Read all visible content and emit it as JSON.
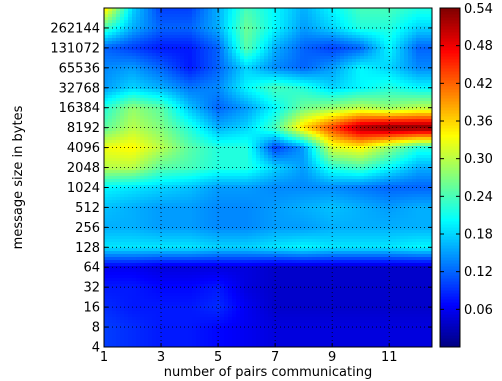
{
  "chart_data": {
    "type": "heatmap",
    "title": "",
    "xlabel": "number of pairs communicating",
    "ylabel": "message size in bytes",
    "x_ticks": [
      1,
      3,
      5,
      7,
      9,
      11
    ],
    "x_range": [
      1,
      12.5
    ],
    "y_ticks": [
      4,
      8,
      16,
      32,
      64,
      128,
      256,
      512,
      1024,
      2048,
      4096,
      8192,
      16384,
      32768,
      65536,
      131072,
      262144
    ],
    "y_scale": "log2",
    "y_range": [
      4,
      524288
    ],
    "colorbar": {
      "ticks": [
        0.06,
        0.12,
        0.18,
        0.24,
        0.3,
        0.36,
        0.42,
        0.48,
        0.54
      ],
      "range": [
        0.0,
        0.54
      ],
      "colormap": "jet"
    },
    "grid": true,
    "x": [
      1,
      2,
      3,
      4,
      5,
      6,
      7,
      8,
      9,
      10,
      11,
      12
    ],
    "y": [
      4,
      8,
      16,
      32,
      64,
      128,
      256,
      512,
      1024,
      2048,
      4096,
      8192,
      16384,
      32768,
      65536,
      131072,
      262144,
      524288
    ],
    "values": [
      [
        0.1,
        0.09,
        0.08,
        0.08,
        0.07,
        0.06,
        0.05,
        0.05,
        0.05,
        0.05,
        0.05,
        0.05
      ],
      [
        0.1,
        0.09,
        0.08,
        0.08,
        0.07,
        0.06,
        0.05,
        0.05,
        0.05,
        0.05,
        0.05,
        0.05
      ],
      [
        0.09,
        0.08,
        0.08,
        0.08,
        0.09,
        0.06,
        0.04,
        0.04,
        0.04,
        0.04,
        0.04,
        0.04
      ],
      [
        0.08,
        0.08,
        0.07,
        0.07,
        0.08,
        0.05,
        0.04,
        0.04,
        0.04,
        0.04,
        0.04,
        0.04
      ],
      [
        0.06,
        0.06,
        0.05,
        0.05,
        0.05,
        0.05,
        0.04,
        0.04,
        0.04,
        0.04,
        0.04,
        0.04
      ],
      [
        0.19,
        0.19,
        0.19,
        0.19,
        0.18,
        0.18,
        0.19,
        0.2,
        0.19,
        0.19,
        0.19,
        0.2
      ],
      [
        0.16,
        0.16,
        0.15,
        0.15,
        0.14,
        0.14,
        0.15,
        0.15,
        0.16,
        0.16,
        0.16,
        0.16
      ],
      [
        0.17,
        0.16,
        0.15,
        0.15,
        0.14,
        0.14,
        0.15,
        0.16,
        0.17,
        0.16,
        0.15,
        0.16
      ],
      [
        0.2,
        0.19,
        0.18,
        0.17,
        0.15,
        0.15,
        0.14,
        0.14,
        0.14,
        0.13,
        0.12,
        0.12
      ],
      [
        0.3,
        0.3,
        0.25,
        0.24,
        0.22,
        0.22,
        0.18,
        0.15,
        0.22,
        0.24,
        0.2,
        0.16
      ],
      [
        0.33,
        0.34,
        0.3,
        0.25,
        0.22,
        0.22,
        0.1,
        0.15,
        0.32,
        0.34,
        0.28,
        0.22
      ],
      [
        0.25,
        0.3,
        0.27,
        0.22,
        0.16,
        0.18,
        0.24,
        0.36,
        0.44,
        0.52,
        0.54,
        0.54
      ],
      [
        0.22,
        0.28,
        0.25,
        0.17,
        0.12,
        0.15,
        0.2,
        0.26,
        0.28,
        0.3,
        0.28,
        0.3
      ],
      [
        0.15,
        0.18,
        0.16,
        0.13,
        0.14,
        0.2,
        0.24,
        0.22,
        0.18,
        0.2,
        0.22,
        0.2
      ],
      [
        0.14,
        0.15,
        0.12,
        0.08,
        0.12,
        0.18,
        0.14,
        0.12,
        0.15,
        0.2,
        0.18,
        0.14
      ],
      [
        0.12,
        0.1,
        0.08,
        0.08,
        0.12,
        0.25,
        0.16,
        0.12,
        0.1,
        0.12,
        0.2,
        0.12
      ],
      [
        0.24,
        0.16,
        0.12,
        0.12,
        0.16,
        0.26,
        0.2,
        0.15,
        0.18,
        0.22,
        0.22,
        0.18
      ],
      [
        0.36,
        0.18,
        0.1,
        0.1,
        0.16,
        0.24,
        0.2,
        0.16,
        0.2,
        0.24,
        0.24,
        0.22
      ]
    ]
  }
}
